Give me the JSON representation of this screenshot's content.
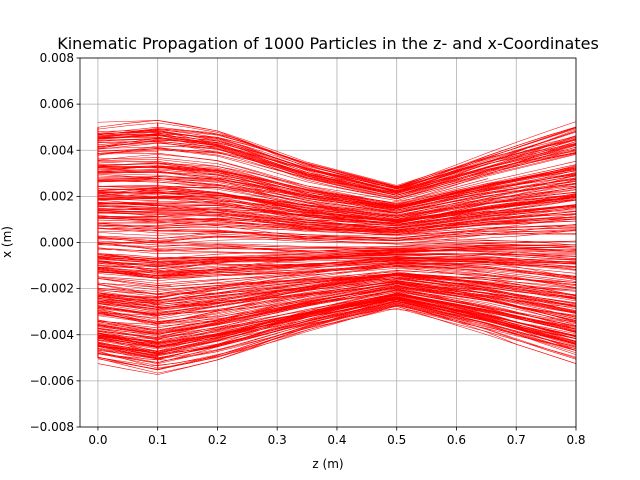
{
  "chart_data": {
    "type": "line",
    "title": "Kinematic Propagation of 1000 Particles in the z- and x-Coordinates",
    "xlabel": "z (m)",
    "ylabel": "x (m)",
    "xlim": [
      -0.03,
      0.8
    ],
    "ylim": [
      -0.008,
      0.008
    ],
    "xticks": [
      0.0,
      0.1,
      0.2,
      0.3,
      0.4,
      0.5,
      0.6,
      0.7,
      0.8
    ],
    "xtick_labels": [
      "0.0",
      "0.1",
      "0.2",
      "0.3",
      "0.4",
      "0.5",
      "0.6",
      "0.7",
      "0.8"
    ],
    "yticks": [
      -0.008,
      -0.006,
      -0.004,
      -0.002,
      0.0,
      0.002,
      0.004,
      0.006,
      0.008
    ],
    "ytick_labels": [
      "−0.008",
      "−0.006",
      "−0.004",
      "−0.002",
      "0.000",
      "0.002",
      "0.004",
      "0.006",
      "0.008"
    ],
    "grid": true,
    "line_color": "#ff0000",
    "particle_count": 1000,
    "profile": {
      "z": [
        0.0,
        0.1,
        0.21,
        0.35,
        0.5,
        0.65,
        0.8
      ],
      "x_max": [
        0.005,
        0.0052,
        0.0048,
        0.0035,
        0.0025,
        0.0038,
        0.005
      ],
      "x_min": [
        -0.005,
        -0.0055,
        -0.0049,
        -0.0038,
        -0.0028,
        -0.0038,
        -0.005
      ]
    }
  }
}
